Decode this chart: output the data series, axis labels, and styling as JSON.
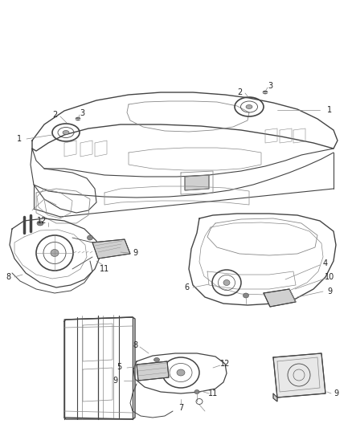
{
  "bg_color": "#ffffff",
  "line_color": "#444444",
  "fig_width": 4.38,
  "fig_height": 5.33,
  "dpi": 100
}
